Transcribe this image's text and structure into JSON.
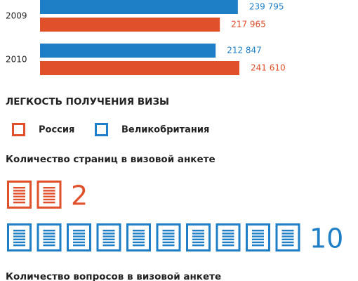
{
  "chart_data": [
    {
      "type": "hbar",
      "categories": [
        "2009",
        "2010"
      ],
      "series": [
        {
          "color": "#1f7fc6",
          "values": [
            239795,
            212847
          ],
          "value_labels": [
            "239 795",
            "212 847"
          ]
        },
        {
          "color": "#e0502b",
          "values": [
            217965,
            241610
          ],
          "value_labels": [
            "217 965",
            "241 610"
          ]
        }
      ]
    },
    {
      "type": "pictogram",
      "section_title": "ЛЕГКОСТЬ ПОЛУЧЕНИЯ ВИЗЫ",
      "title": "Количество страниц в визовой анкете",
      "series": [
        {
          "name": "Россия",
          "color": "#e0502b",
          "values": [
            2
          ]
        },
        {
          "name": "Великобритания",
          "color": "#1f7fc6",
          "values": [
            10
          ]
        }
      ]
    }
  ],
  "next_title": "Количество вопросов в визовой анкете"
}
